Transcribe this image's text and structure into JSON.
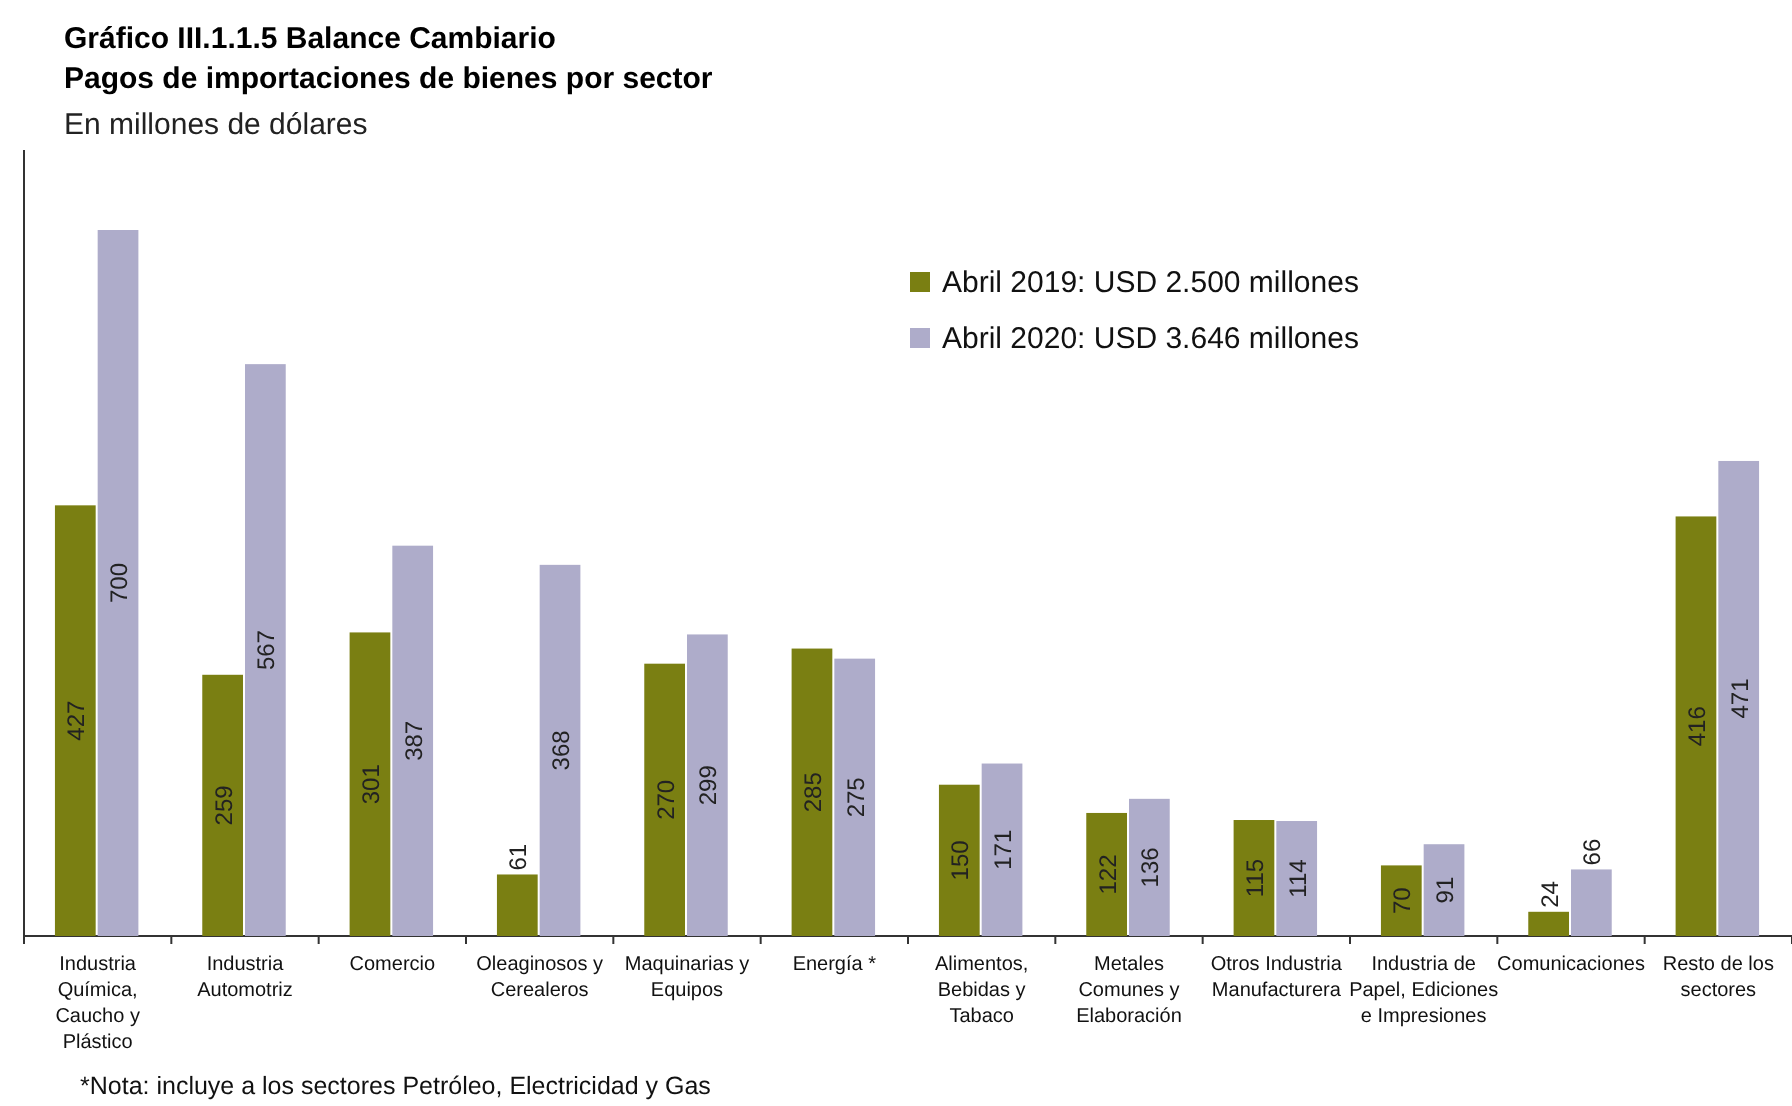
{
  "chart_data": {
    "type": "bar",
    "title": "Gráfico III.1.1.5 Balance Cambiario",
    "subtitle": "Pagos de importaciones de bienes por sector",
    "ylabel": "En millones de dólares",
    "categories": [
      "Industria\nQuímica,\nCaucho y\nPlástico",
      "Industria\nAutomotriz",
      "Comercio",
      "Oleaginosos y\nCerealeros",
      "Maquinarias y\nEquipos",
      "Energía *",
      "Alimentos,\nBebidas y\nTabaco",
      "Metales\nComunes y\nElaboración",
      "Otros Industria\nManufacturera",
      "Industria de\nPapel, Ediciones\ne Impresiones",
      "Comunicaciones",
      "Resto de los\nsectores"
    ],
    "series": [
      {
        "name": "Abril 2019: USD 2.500 millones",
        "color": "#7a7f12",
        "values": [
          427,
          259,
          301,
          61,
          270,
          285,
          150,
          122,
          115,
          70,
          24,
          416
        ]
      },
      {
        "name": "Abril 2020: USD 3.646 millones",
        "color": "#aeacca",
        "values": [
          700,
          567,
          387,
          368,
          299,
          275,
          171,
          136,
          114,
          91,
          66,
          471
        ]
      }
    ],
    "relative": false,
    "data_labels": true,
    "legend": "top right",
    "annotations": [
      "*Nota: incluye a los sectores Petróleo, Electricidad y Gas"
    ]
  }
}
